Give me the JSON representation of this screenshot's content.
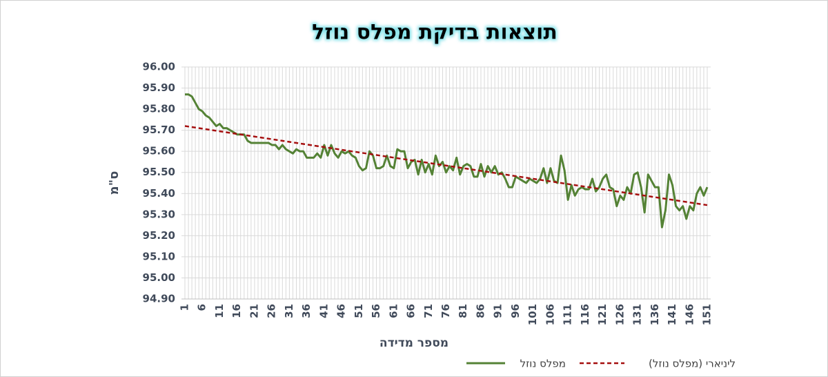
{
  "chart_data": {
    "type": "line",
    "title": "תוצאות בדיקת מפלס נוזל",
    "x_label": "מספר מדידה",
    "y_label": "ס\"מ",
    "x": [
      1,
      2,
      3,
      4,
      5,
      6,
      7,
      8,
      9,
      10,
      11,
      12,
      13,
      14,
      15,
      16,
      17,
      18,
      19,
      20,
      21,
      22,
      23,
      24,
      25,
      26,
      27,
      28,
      29,
      30,
      31,
      32,
      33,
      34,
      35,
      36,
      37,
      38,
      39,
      40,
      41,
      42,
      43,
      44,
      45,
      46,
      47,
      48,
      49,
      50,
      51,
      52,
      53,
      54,
      55,
      56,
      57,
      58,
      59,
      60,
      61,
      62,
      63,
      64,
      65,
      66,
      67,
      68,
      69,
      70,
      71,
      72,
      73,
      74,
      75,
      76,
      77,
      78,
      79,
      80,
      81,
      82,
      83,
      84,
      85,
      86,
      87,
      88,
      89,
      90,
      91,
      92,
      93,
      94,
      95,
      96,
      97,
      98,
      99,
      100,
      101,
      102,
      103,
      104,
      105,
      106,
      107,
      108,
      109,
      110,
      111,
      112,
      113,
      114,
      115,
      116,
      117,
      118,
      119,
      120,
      121,
      122,
      123,
      124,
      125,
      126,
      127,
      128,
      129,
      130,
      131,
      132,
      133,
      134,
      135,
      136,
      137,
      138,
      139,
      140,
      141,
      142,
      143,
      144,
      145,
      146,
      147,
      148,
      149,
      150,
      151
    ],
    "series": [
      {
        "name": "מפלס נוזל",
        "color": "#548235",
        "values": [
          95.87,
          95.87,
          95.86,
          95.83,
          95.8,
          95.79,
          95.77,
          95.76,
          95.74,
          95.72,
          95.73,
          95.71,
          95.71,
          95.7,
          95.69,
          95.68,
          95.68,
          95.68,
          95.65,
          95.64,
          95.64,
          95.64,
          95.64,
          95.64,
          95.64,
          95.63,
          95.63,
          95.61,
          95.63,
          95.61,
          95.6,
          95.59,
          95.61,
          95.6,
          95.6,
          95.57,
          95.57,
          95.57,
          95.59,
          95.57,
          95.63,
          95.58,
          95.63,
          95.59,
          95.57,
          95.6,
          95.59,
          95.6,
          95.58,
          95.57,
          95.53,
          95.51,
          95.52,
          95.6,
          95.58,
          95.52,
          95.52,
          95.53,
          95.58,
          95.53,
          95.52,
          95.61,
          95.6,
          95.6,
          95.52,
          95.55,
          95.56,
          95.49,
          95.56,
          95.5,
          95.54,
          95.49,
          95.58,
          95.53,
          95.55,
          95.5,
          95.53,
          95.51,
          95.57,
          95.49,
          95.53,
          95.54,
          95.53,
          95.48,
          95.48,
          95.54,
          95.48,
          95.53,
          95.5,
          95.53,
          95.49,
          95.5,
          95.47,
          95.43,
          95.43,
          95.48,
          95.47,
          95.46,
          95.45,
          95.47,
          95.46,
          95.45,
          95.47,
          95.52,
          95.45,
          95.52,
          95.46,
          95.45,
          95.58,
          95.51,
          95.37,
          95.44,
          95.39,
          95.42,
          95.43,
          95.42,
          95.42,
          95.47,
          95.41,
          95.43,
          95.47,
          95.49,
          95.43,
          95.42,
          95.34,
          95.39,
          95.37,
          95.43,
          95.4,
          95.49,
          95.5,
          95.43,
          95.31,
          95.49,
          95.46,
          95.43,
          95.43,
          95.24,
          95.32,
          95.49,
          95.44,
          95.34,
          95.32,
          95.34,
          95.28,
          95.34,
          95.32,
          95.4,
          95.43,
          95.39,
          95.43
        ]
      }
    ],
    "trendline": {
      "name": "ליניארי (מפלס נוזל)",
      "color": "#a50f0f",
      "x": [
        1,
        151
      ],
      "values": [
        95.72,
        95.345
      ]
    },
    "xlim": [
      1,
      151
    ],
    "xticks": [
      1,
      6,
      11,
      16,
      21,
      26,
      31,
      36,
      41,
      46,
      51,
      56,
      61,
      66,
      71,
      76,
      81,
      86,
      91,
      96,
      101,
      106,
      111,
      116,
      121,
      126,
      131,
      136,
      141,
      146,
      151
    ],
    "ylim": [
      94.9,
      96.0
    ],
    "yticks": [
      {
        "value": 94.9,
        "label": "94.90"
      },
      {
        "value": 95.0,
        "label": "95.00"
      },
      {
        "value": 95.1,
        "label": "95.10"
      },
      {
        "value": 95.2,
        "label": "95.20"
      },
      {
        "value": 95.3,
        "label": "95.30"
      },
      {
        "value": 95.4,
        "label": "95.40"
      },
      {
        "value": 95.5,
        "label": "95.50"
      },
      {
        "value": 95.6,
        "label": "95.60"
      },
      {
        "value": 95.7,
        "label": "95.70"
      },
      {
        "value": 95.8,
        "label": "95.80"
      },
      {
        "value": 95.9,
        "label": "95.90"
      },
      {
        "value": 96.0,
        "label": "96.00"
      }
    ],
    "grid": true
  }
}
